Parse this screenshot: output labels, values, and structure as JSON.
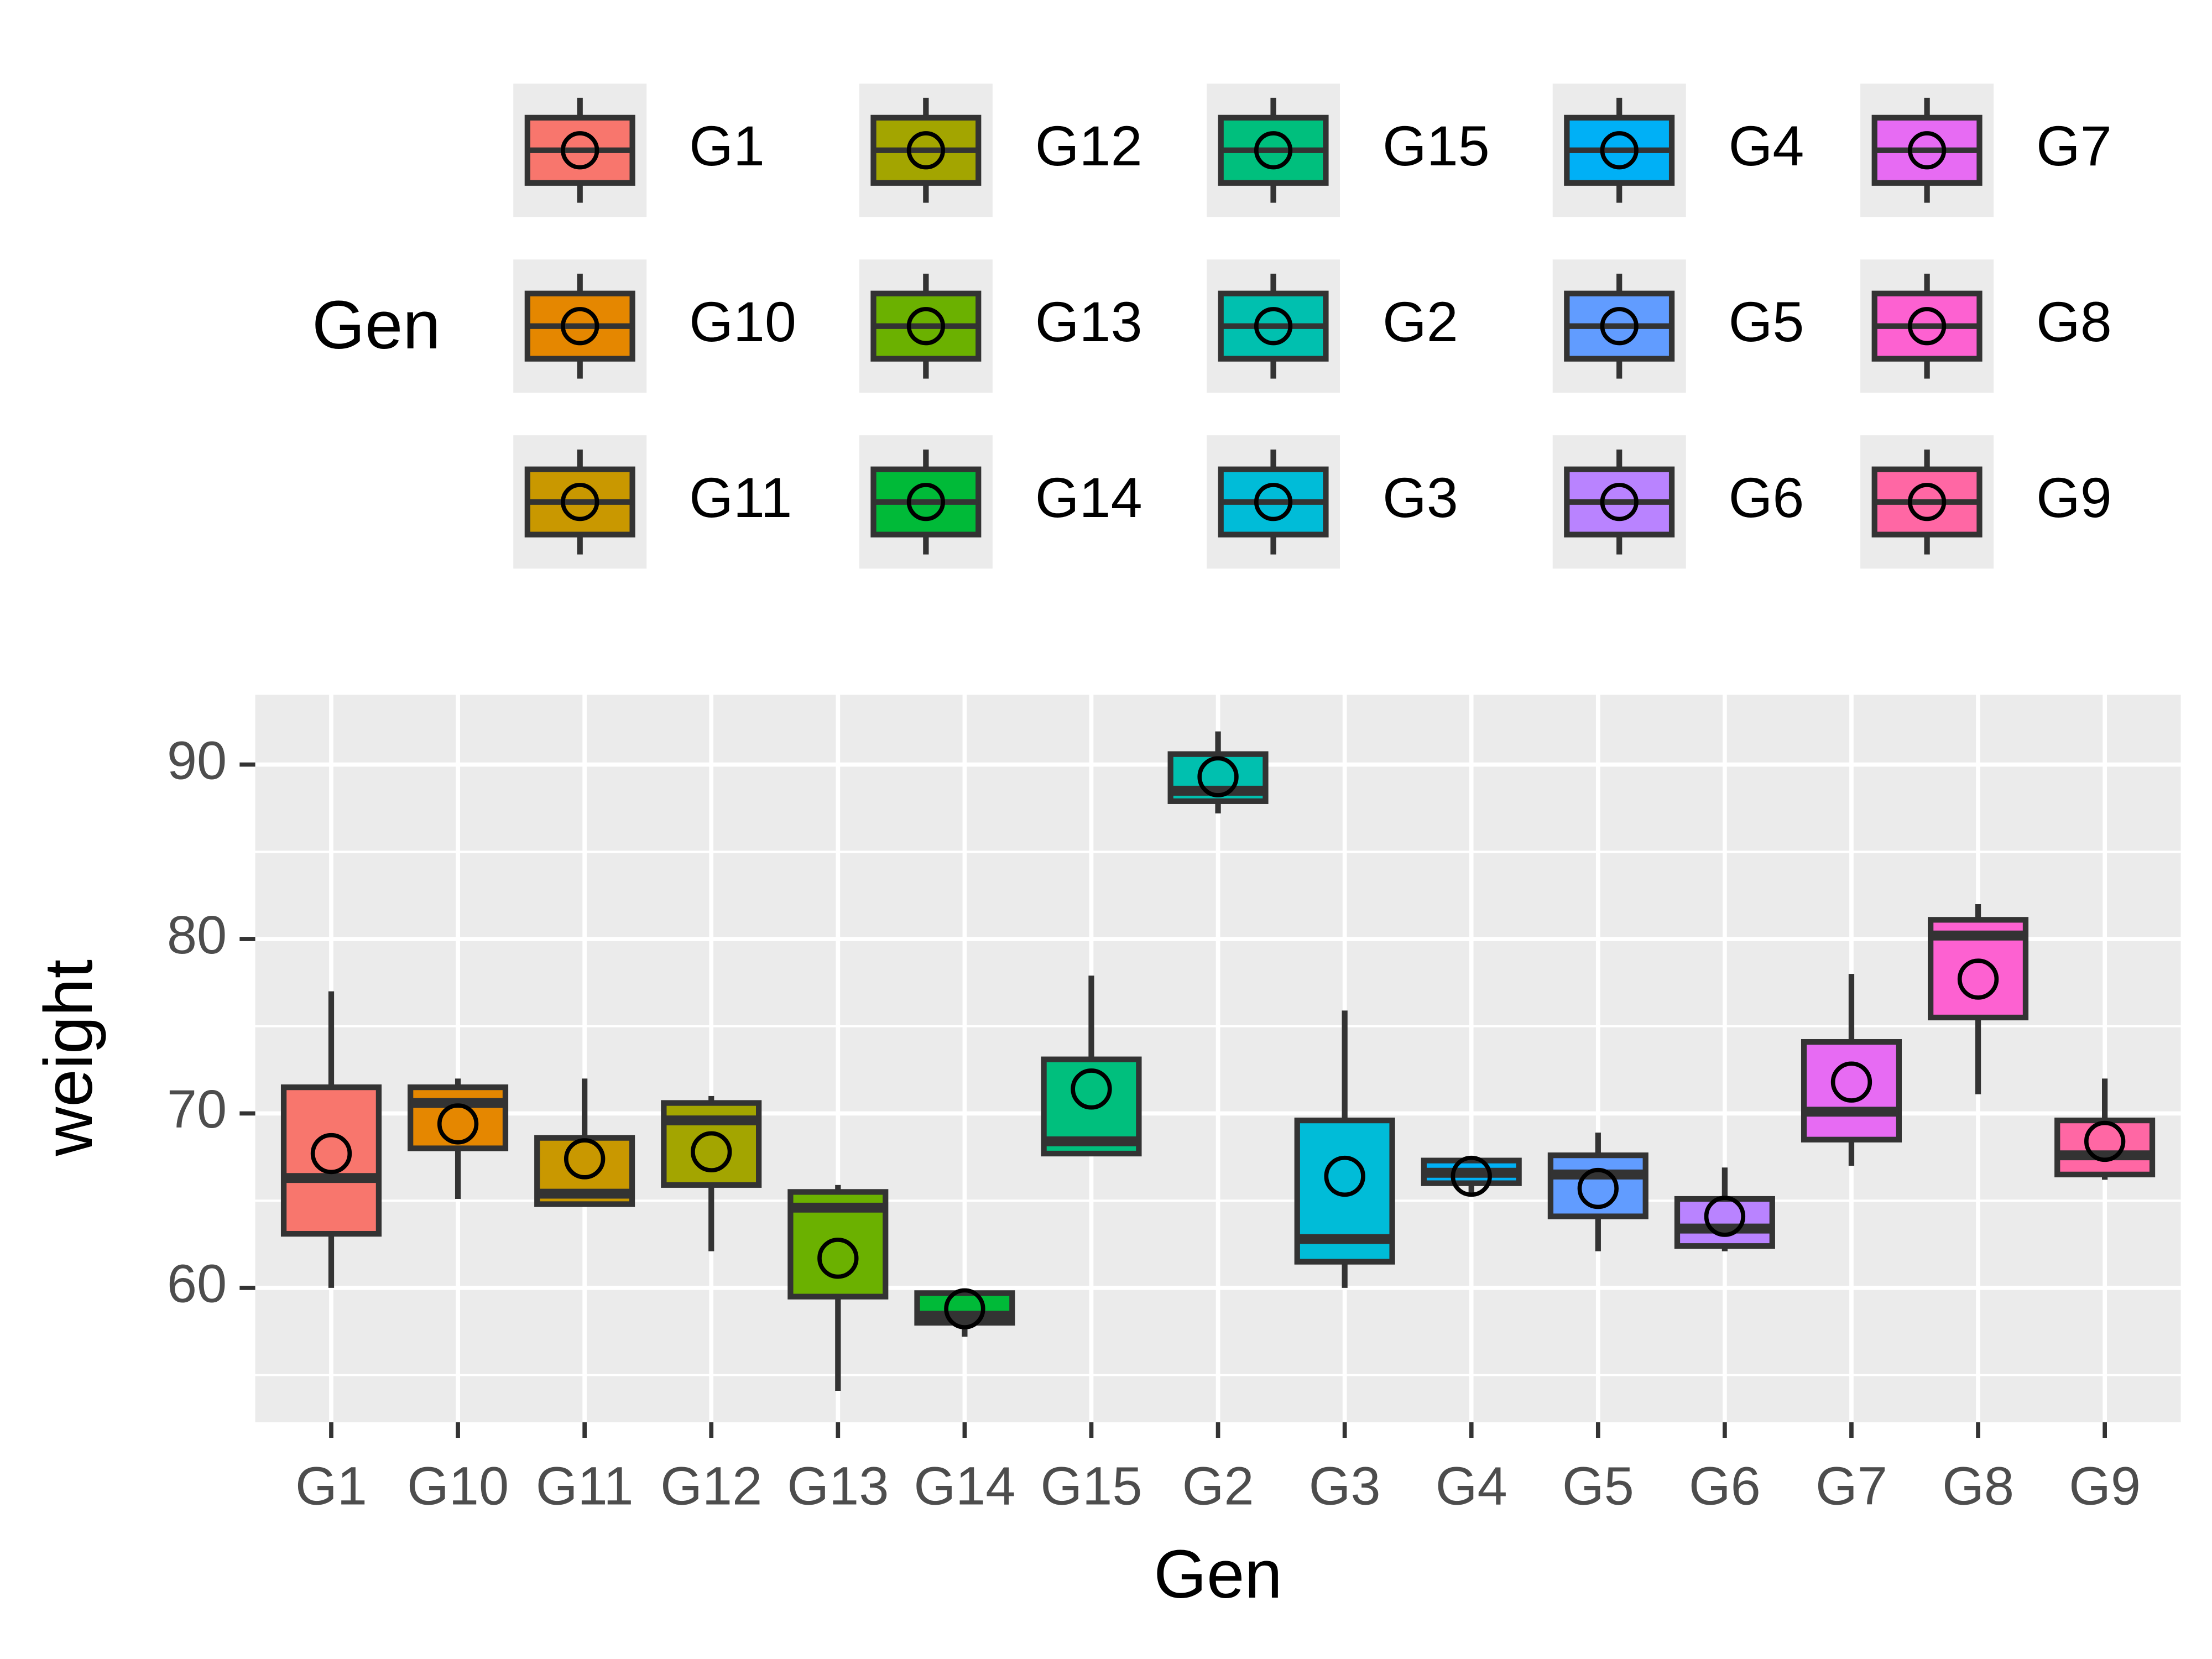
{
  "chart_data": {
    "type": "boxplot",
    "x_label": "Gen",
    "y_label": "weight",
    "legend_title": "Gen",
    "categories": [
      "G1",
      "G10",
      "G11",
      "G12",
      "G13",
      "G14",
      "G15",
      "G2",
      "G3",
      "G4",
      "G5",
      "G6",
      "G7",
      "G8",
      "G9"
    ],
    "colors": [
      "#F8766D",
      "#E58700",
      "#C99800",
      "#A3A500",
      "#6BB100",
      "#00BA38",
      "#00BF7D",
      "#00C0AF",
      "#00BCD8",
      "#00B0F6",
      "#619CFF",
      "#B983FF",
      "#E76BF3",
      "#FD61D1",
      "#FF67A4"
    ],
    "boxes": [
      {
        "min": 60,
        "q1": 63.1,
        "median": 66.3,
        "q3": 71.5,
        "max": 77,
        "mean": 67.7
      },
      {
        "min": 65.1,
        "q1": 68,
        "median": 70.6,
        "q3": 71.5,
        "max": 72,
        "mean": 69.4
      },
      {
        "min": 64.8,
        "q1": 64.8,
        "median": 65.4,
        "q3": 68.6,
        "max": 72,
        "mean": 67.4
      },
      {
        "min": 62.1,
        "q1": 65.9,
        "median": 69.6,
        "q3": 70.6,
        "max": 71,
        "mean": 67.8
      },
      {
        "min": 54.1,
        "q1": 59.5,
        "median": 64.6,
        "q3": 65.5,
        "max": 65.9,
        "mean": 61.7
      },
      {
        "min": 57.2,
        "q1": 58,
        "median": 58.4,
        "q3": 59.7,
        "max": 59.7,
        "mean": 58.8
      },
      {
        "min": 67.7,
        "q1": 67.7,
        "median": 68.4,
        "q3": 73.1,
        "max": 77.9,
        "mean": 71.4
      },
      {
        "min": 87.2,
        "q1": 87.9,
        "median": 88.5,
        "q3": 90.6,
        "max": 91.9,
        "mean": 89.3
      },
      {
        "min": 60,
        "q1": 61.5,
        "median": 62.8,
        "q3": 69.6,
        "max": 75.9,
        "mean": 66.4
      },
      {
        "min": 65.4,
        "q1": 66,
        "median": 66.6,
        "q3": 67.3,
        "max": 67.3,
        "mean": 66.4
      },
      {
        "min": 62.1,
        "q1": 64.1,
        "median": 66.5,
        "q3": 67.6,
        "max": 68.9,
        "mean": 65.7
      },
      {
        "min": 62.1,
        "q1": 62.4,
        "median": 63.4,
        "q3": 65.1,
        "max": 66.9,
        "mean": 64.1
      },
      {
        "min": 67,
        "q1": 68.5,
        "median": 70.1,
        "q3": 74.1,
        "max": 78,
        "mean": 71.8
      },
      {
        "min": 71.1,
        "q1": 75.5,
        "median": 80.2,
        "q3": 81.1,
        "max": 82,
        "mean": 77.7
      },
      {
        "min": 66.2,
        "q1": 66.5,
        "median": 67.6,
        "q3": 69.6,
        "max": 72,
        "mean": 68.4
      }
    ],
    "ylim": [
      52.3,
      94.0
    ],
    "yticks": [
      60,
      70,
      80,
      90
    ],
    "grid": true
  }
}
